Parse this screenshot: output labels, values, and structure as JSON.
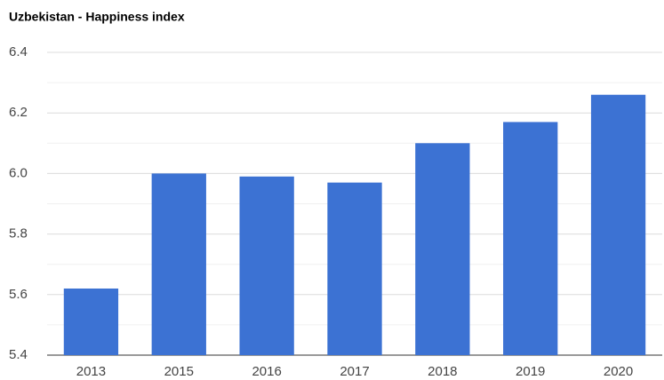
{
  "chart_data": {
    "type": "bar",
    "title": "Uzbekistan - Happiness index",
    "categories": [
      "2013",
      "2015",
      "2016",
      "2017",
      "2018",
      "2019",
      "2020"
    ],
    "values": [
      5.62,
      6.0,
      5.99,
      5.97,
      6.1,
      6.17,
      6.26
    ],
    "color": "#3c72d3",
    "ylim": [
      5.4,
      6.4
    ],
    "yticks": [
      5.4,
      5.6,
      5.8,
      {
        "value": 6,
        "label": "6.0"
      },
      6.2,
      6.4
    ],
    "minor_yticks": [
      5.5,
      5.7,
      5.9,
      6.1,
      6.3
    ],
    "grid": true
  }
}
